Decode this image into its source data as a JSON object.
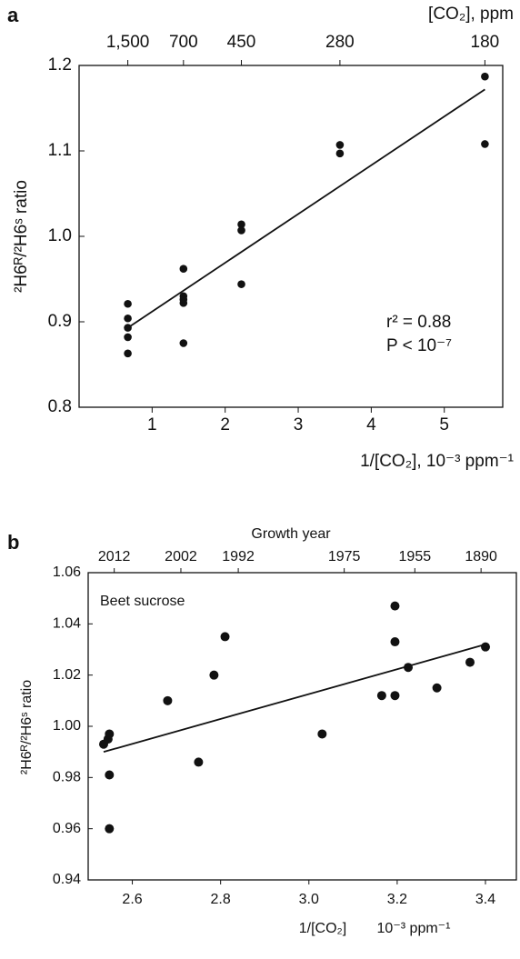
{
  "chart_data": [
    {
      "type": "scatter",
      "panel_label": "a",
      "x2_label": "[CO₂], ppm",
      "x_label": "1/[CO₂], 10⁻³ ppm⁻¹",
      "y_label": "²H6ᴿ/²H6ˢ ratio",
      "annotations": [
        "r² = 0.88",
        "P < 10⁻⁷"
      ],
      "x": [
        0.667,
        0.667,
        0.667,
        0.667,
        0.667,
        1.429,
        1.429,
        1.429,
        1.429,
        1.429,
        2.222,
        2.222,
        2.222,
        3.571,
        3.571,
        5.556,
        5.556
      ],
      "values": [
        0.921,
        0.904,
        0.893,
        0.882,
        0.863,
        0.962,
        0.93,
        0.926,
        0.922,
        0.875,
        1.014,
        1.007,
        0.944,
        1.107,
        1.097,
        1.187,
        1.108
      ],
      "fit": {
        "x": [
          0.667,
          5.556
        ],
        "y": [
          0.893,
          1.172
        ]
      },
      "color": "#111111",
      "xlim": [
        0,
        5.8
      ],
      "ylim": [
        0.8,
        1.2
      ],
      "xticks": [
        1,
        2,
        3,
        4,
        5
      ],
      "yticks": [
        0.8,
        0.9,
        {
          "value": 1.0,
          "label": "1.0"
        },
        1.1,
        1.2
      ],
      "x2ticks": [
        {
          "value": 0.667,
          "label": "1,500"
        },
        {
          "value": 1.429,
          "label": "700"
        },
        {
          "value": 2.222,
          "label": "450"
        },
        {
          "value": 3.571,
          "label": "280"
        },
        {
          "value": 5.556,
          "label": "180"
        }
      ]
    },
    {
      "type": "scatter",
      "panel_label": "b",
      "x2_label": "Growth year",
      "x_label": "1/[CO₂]",
      "x_label_units": "10⁻³ ppm⁻¹",
      "y_label": "²H6ᴿ/²H6ˢ ratio",
      "annotations": [
        "Beet sucrose"
      ],
      "x": [
        2.535,
        2.545,
        2.548,
        2.548,
        2.548,
        2.68,
        2.75,
        2.785,
        2.81,
        3.03,
        3.165,
        3.195,
        3.195,
        3.195,
        3.225,
        3.29,
        3.365,
        3.4
      ],
      "values": [
        0.993,
        0.995,
        0.997,
        0.981,
        0.96,
        1.01,
        0.986,
        1.02,
        1.035,
        0.997,
        1.012,
        1.012,
        1.047,
        1.033,
        1.023,
        1.015,
        1.025,
        1.031
      ],
      "fit": {
        "x": [
          2.535,
          3.4
        ],
        "y": [
          0.99,
          1.032
        ]
      },
      "color": "#111111",
      "xlim": [
        2.5,
        3.47
      ],
      "ylim": [
        0.94,
        1.06
      ],
      "xticks": [
        2.6,
        2.8,
        {
          "value": 3.0,
          "label": "3.0"
        },
        3.2,
        3.4
      ],
      "yticks": [
        0.94,
        0.96,
        0.98,
        {
          "value": 1.0,
          "label": "1.00"
        },
        1.02,
        1.04,
        1.06
      ],
      "x2ticks": [
        {
          "value": 2.559,
          "label": "2012"
        },
        {
          "value": 2.71,
          "label": "2002"
        },
        {
          "value": 2.84,
          "label": "1992"
        },
        {
          "value": 3.08,
          "label": "1975"
        },
        {
          "value": 3.24,
          "label": "1955"
        },
        {
          "value": 3.39,
          "label": "1890"
        }
      ]
    }
  ]
}
